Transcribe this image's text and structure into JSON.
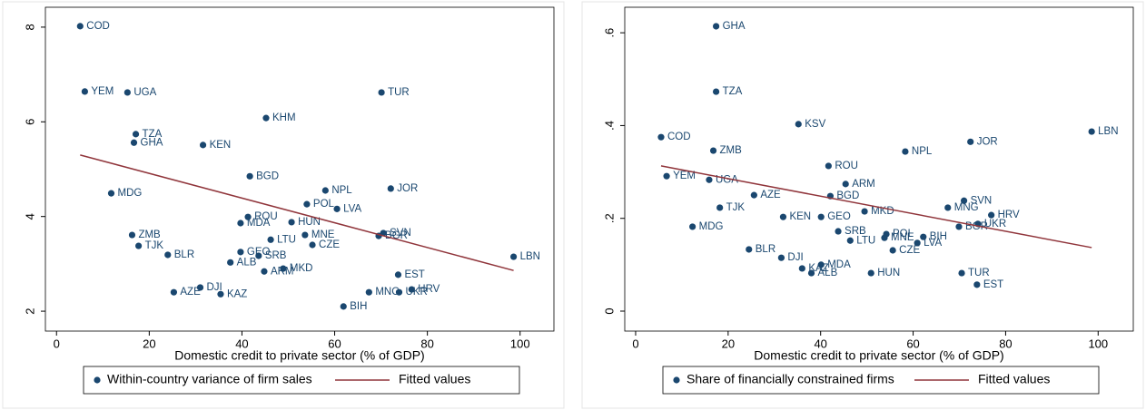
{
  "chart_data": [
    {
      "type": "scatter",
      "x_label": "Domestic credit to private sector (% of GDP)",
      "xlim": [
        -2.4,
        107.3
      ],
      "ylim": [
        1.58,
        8.42
      ],
      "xticks": [
        0,
        20,
        40,
        60,
        80,
        100
      ],
      "yticks": [
        2,
        4,
        6,
        8
      ],
      "grid": false,
      "series": [
        {
          "name": "Within-country variance of firm sales",
          "color": "#1a476f",
          "labels": [
            "COD",
            "YEM",
            "UGA",
            "TUR",
            "KHM",
            "TZA",
            "GHA",
            "KEN",
            "BGD",
            "MDG",
            "NPL",
            "JOR",
            "POL",
            "LVA",
            "ROU",
            "MDA",
            "HUN",
            "SVN",
            "BGR",
            "MNE",
            "LTU",
            "CZE",
            "ZMB",
            "TJK",
            "BLR",
            "GEO",
            "SRB",
            "LBN",
            "ALB",
            "ARM",
            "MKD",
            "EST",
            "AZE",
            "DJI",
            "KAZ",
            "MNG",
            "UKR",
            "HRV",
            "BIH"
          ],
          "x": [
            5.1,
            6.1,
            15.3,
            70.1,
            45.2,
            17.1,
            16.7,
            31.6,
            41.7,
            11.8,
            58.0,
            72.1,
            54.0,
            60.5,
            41.3,
            39.7,
            50.7,
            70.5,
            69.5,
            53.6,
            46.2,
            55.2,
            16.3,
            17.7,
            24.0,
            39.7,
            43.6,
            98.6,
            37.5,
            44.8,
            48.9,
            73.7,
            25.3,
            31.0,
            35.4,
            67.4,
            73.9,
            76.6,
            61.9
          ],
          "values": [
            8.02,
            6.64,
            6.62,
            6.62,
            6.08,
            5.74,
            5.56,
            5.51,
            4.85,
            4.49,
            4.55,
            4.59,
            4.26,
            4.16,
            3.99,
            3.86,
            3.88,
            3.65,
            3.59,
            3.61,
            3.51,
            3.4,
            3.61,
            3.38,
            3.19,
            3.25,
            3.17,
            3.15,
            3.03,
            2.84,
            2.9,
            2.77,
            2.4,
            2.5,
            2.36,
            2.4,
            2.4,
            2.46,
            2.1
          ]
        },
        {
          "name": "Fitted values",
          "color": "#90353b",
          "type": "line",
          "x": [
            5.1,
            98.6
          ],
          "values": [
            5.3,
            2.86
          ]
        }
      ]
    },
    {
      "type": "scatter",
      "x_label": "Domestic credit to private sector (% of GDP)",
      "xlim": [
        -2.35,
        107.6
      ],
      "ylim": [
        -0.043,
        0.655
      ],
      "xticks": [
        0,
        20,
        40,
        60,
        80,
        100
      ],
      "yticks": [
        0,
        {
          "value": 0.2,
          "label": ".2"
        },
        {
          "value": 0.4,
          "label": ".4"
        },
        {
          "value": 0.6,
          "label": ".6"
        }
      ],
      "grid": false,
      "series": [
        {
          "name": "Share of financially constrained firms",
          "color": "#1a476f",
          "labels": [
            "GHA",
            "TZA",
            "KSV",
            "COD",
            "ZMB",
            "NPL",
            "JOR",
            "LBN",
            "ROU",
            "YEM",
            "UGA",
            "ARM",
            "AZE",
            "BGD",
            "SVN",
            "TJK",
            "MNG",
            "MKD",
            "HRV",
            "KEN",
            "GEO",
            "UKR",
            "MDG",
            "BGR",
            "SRB",
            "LTU",
            "POL",
            "MNE",
            "BIH",
            "LVA",
            "CZE",
            "BLR",
            "DJI",
            "KAZ",
            "MDA",
            "ALB",
            "HUN",
            "TUR",
            "EST"
          ],
          "x": [
            17.4,
            17.4,
            35.2,
            5.5,
            16.8,
            58.3,
            72.4,
            98.6,
            41.7,
            6.7,
            15.9,
            45.4,
            25.6,
            42.1,
            71.0,
            18.2,
            67.5,
            49.5,
            76.9,
            31.9,
            40.1,
            74.0,
            12.3,
            69.9,
            43.8,
            46.4,
            54.2,
            53.8,
            62.2,
            60.9,
            55.6,
            24.5,
            31.5,
            36.0,
            40.1,
            38.0,
            50.9,
            70.5,
            73.8
          ],
          "values": [
            0.614,
            0.473,
            0.403,
            0.375,
            0.346,
            0.344,
            0.365,
            0.387,
            0.313,
            0.291,
            0.283,
            0.274,
            0.25,
            0.248,
            0.238,
            0.223,
            0.223,
            0.215,
            0.207,
            0.203,
            0.203,
            0.188,
            0.182,
            0.182,
            0.172,
            0.152,
            0.166,
            0.158,
            0.16,
            0.147,
            0.131,
            0.133,
            0.115,
            0.092,
            0.1,
            0.082,
            0.082,
            0.082,
            0.057
          ]
        },
        {
          "name": "Fitted values",
          "color": "#90353b",
          "type": "line",
          "x": [
            5.5,
            98.6
          ],
          "values": [
            0.313,
            0.137
          ]
        }
      ]
    }
  ]
}
